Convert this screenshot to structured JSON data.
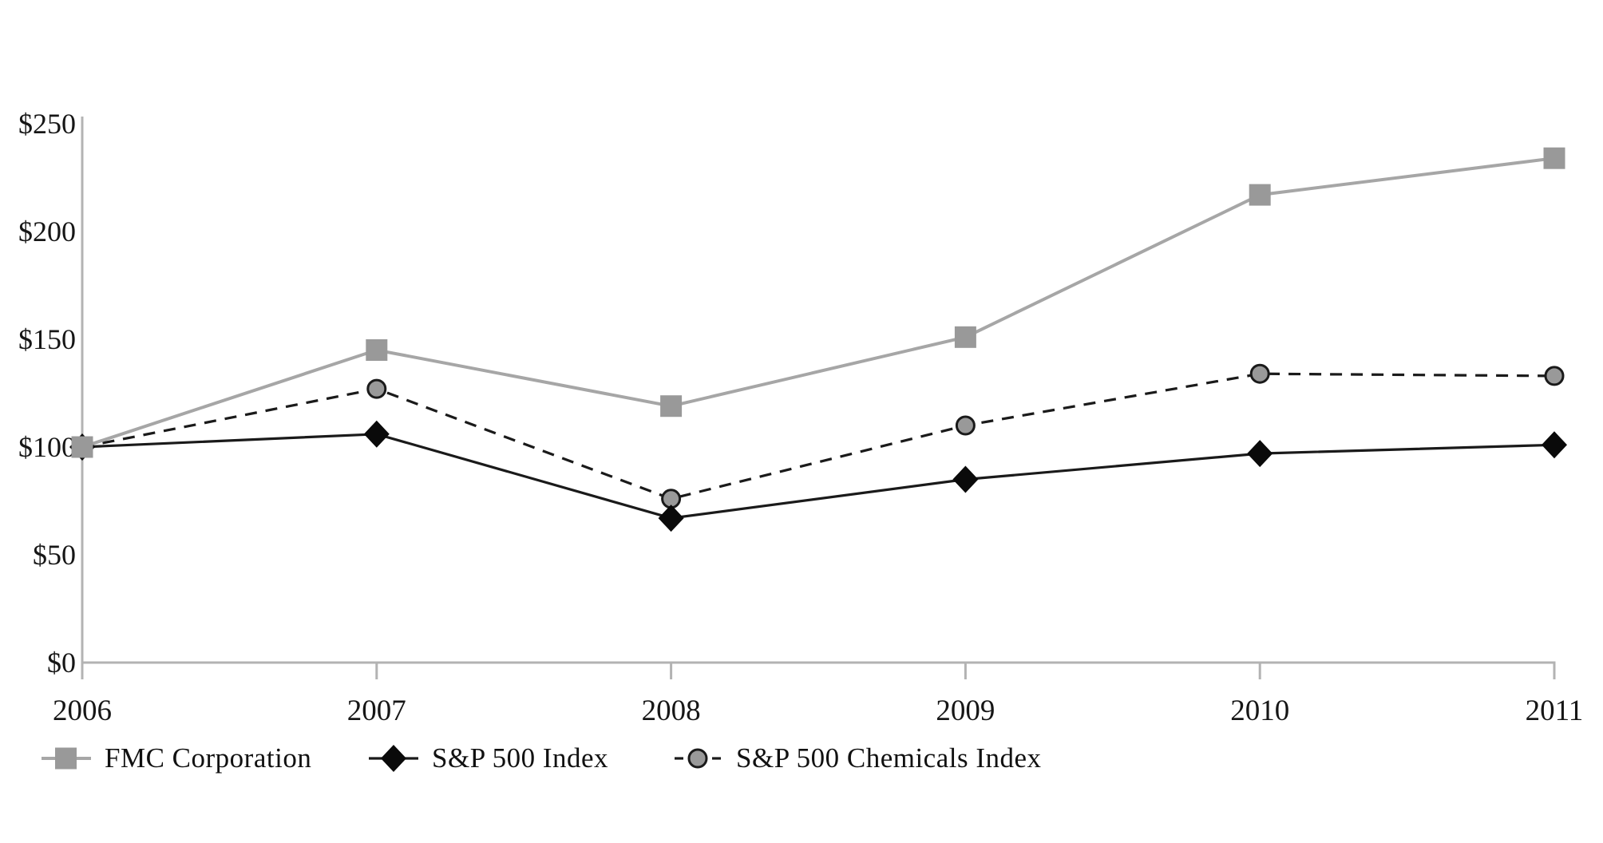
{
  "chart_data": {
    "type": "line",
    "title": "",
    "xlabel": "",
    "ylabel": "",
    "categories": [
      "2006",
      "2007",
      "2008",
      "2009",
      "2010",
      "2011"
    ],
    "series": [
      {
        "name": "FMC Corporation",
        "marker": "square",
        "marker_color": "#999999",
        "line_color": "#a6a6a6",
        "line_style": "solid",
        "values": [
          100,
          145,
          119,
          151,
          217,
          234
        ]
      },
      {
        "name": "S&P 500 Index",
        "marker": "diamond",
        "marker_color": "#0a0a0a",
        "line_color": "#1a1a1a",
        "line_style": "solid",
        "values": [
          100,
          106,
          67,
          85,
          97,
          101
        ]
      },
      {
        "name": "S&P 500 Chemicals Index",
        "marker": "circle",
        "marker_color": "#999999",
        "line_color": "#1a1a1a",
        "line_style": "dashed",
        "values": [
          100,
          127,
          76,
          110,
          134,
          133
        ]
      }
    ],
    "ylim": [
      0,
      250
    ],
    "y_ticks": [
      250,
      200,
      150,
      100,
      50,
      0
    ],
    "y_tick_labels": [
      "$250",
      "$200",
      "$150",
      "$100",
      "$50",
      "$0"
    ],
    "grid": false,
    "legend_position": "bottom-left",
    "axis_color": "#b3b3b3"
  }
}
